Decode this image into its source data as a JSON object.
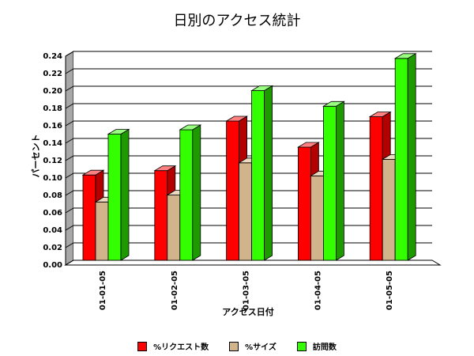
{
  "chart_data": {
    "type": "bar",
    "title": "日別のアクセス統計",
    "xlabel": "アクセス日付",
    "ylabel": "パーセント",
    "categories": [
      "01-01-05",
      "01-02-05",
      "01-03-05",
      "01-04-05",
      "01-05-05"
    ],
    "ylim": [
      0,
      0.24
    ],
    "yticks": [
      "0.00",
      "0.02",
      "0.04",
      "0.06",
      "0.08",
      "0.10",
      "0.12",
      "0.14",
      "0.16",
      "0.18",
      "0.20",
      "0.22",
      "0.24"
    ],
    "series": [
      {
        "name": "%リクエスト数",
        "color": "#ff0000",
        "side": "#b30000",
        "top": "#ff8080",
        "values": [
          0.098,
          0.103,
          0.16,
          0.13,
          0.165
        ]
      },
      {
        "name": "%サイズ",
        "color": "#d2b48c",
        "side": "#9c8060",
        "top": "#ecd9bf",
        "values": [
          0.067,
          0.075,
          0.112,
          0.097,
          0.116
        ]
      },
      {
        "name": "訪問数",
        "color": "#33ff00",
        "side": "#1f9900",
        "top": "#99ff80",
        "values": [
          0.145,
          0.15,
          0.195,
          0.177,
          0.232
        ]
      }
    ],
    "grid": true,
    "legend_position": "bottom"
  }
}
